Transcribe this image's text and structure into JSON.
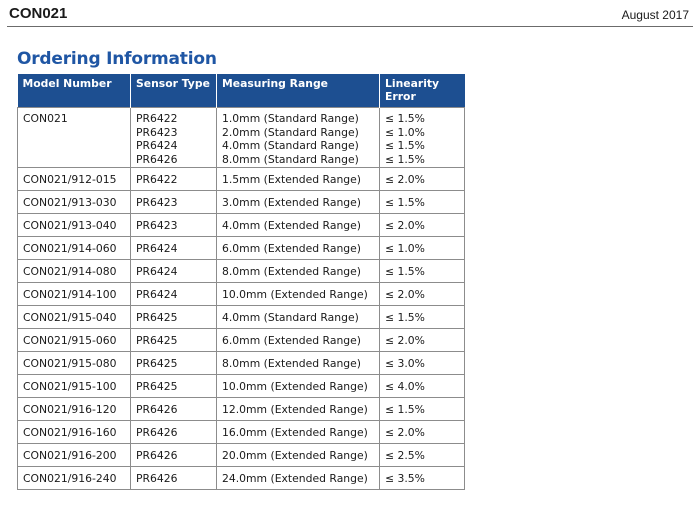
{
  "header": {
    "doc_code": "CON021",
    "date": "August 2017"
  },
  "section_title": "Ordering Information",
  "table": {
    "columns": [
      "Model Number",
      "Sensor Type",
      "Measuring Range",
      "Linearity Error"
    ],
    "first_group": {
      "model": "CON021",
      "sensors": [
        "PR6422",
        "PR6423",
        "PR6424",
        "PR6426"
      ],
      "ranges": [
        "1.0mm (Standard Range)",
        "2.0mm (Standard Range)",
        "4.0mm (Standard Range)",
        "8.0mm (Standard Range)"
      ],
      "errors": [
        "≤ 1.5%",
        "≤ 1.0%",
        "≤ 1.5%",
        "≤ 1.5%"
      ]
    },
    "rows": [
      {
        "model": "CON021/912-015",
        "sensor": "PR6422",
        "range": "1.5mm (Extended Range)",
        "error": "≤ 2.0%"
      },
      {
        "model": "CON021/913-030",
        "sensor": "PR6423",
        "range": "3.0mm (Extended Range)",
        "error": "≤ 1.5%"
      },
      {
        "model": "CON021/913-040",
        "sensor": "PR6423",
        "range": "4.0mm (Extended Range)",
        "error": "≤ 2.0%"
      },
      {
        "model": "CON021/914-060",
        "sensor": "PR6424",
        "range": "6.0mm (Extended Range)",
        "error": "≤ 1.0%"
      },
      {
        "model": "CON021/914-080",
        "sensor": "PR6424",
        "range": "8.0mm (Extended Range)",
        "error": "≤ 1.5%"
      },
      {
        "model": "CON021/914-100",
        "sensor": "PR6424",
        "range": "10.0mm (Extended Range)",
        "error": "≤ 2.0%"
      },
      {
        "model": "CON021/915-040",
        "sensor": "PR6425",
        "range": "4.0mm (Standard Range)",
        "error": "≤ 1.5%"
      },
      {
        "model": "CON021/915-060",
        "sensor": "PR6425",
        "range": "6.0mm (Extended Range)",
        "error": "≤ 2.0%"
      },
      {
        "model": "CON021/915-080",
        "sensor": "PR6425",
        "range": "8.0mm (Extended Range)",
        "error": "≤ 3.0%"
      },
      {
        "model": "CON021/915-100",
        "sensor": "PR6425",
        "range": "10.0mm (Extended Range)",
        "error": "≤ 4.0%"
      },
      {
        "model": "CON021/916-120",
        "sensor": "PR6426",
        "range": "12.0mm (Extended Range)",
        "error": "≤ 1.5%"
      },
      {
        "model": "CON021/916-160",
        "sensor": "PR6426",
        "range": "16.0mm (Extended Range)",
        "error": "≤ 2.0%"
      },
      {
        "model": "CON021/916-200",
        "sensor": "PR6426",
        "range": "20.0mm (Extended Range)",
        "error": "≤ 2.5%"
      },
      {
        "model": "CON021/916-240",
        "sensor": "PR6426",
        "range": "24.0mm (Extended Range)",
        "error": "≤ 3.5%"
      }
    ]
  },
  "colors": {
    "header_fill": "#1d4f91",
    "title_blue": "#1f56a4",
    "grid": "#8c8c8c"
  }
}
